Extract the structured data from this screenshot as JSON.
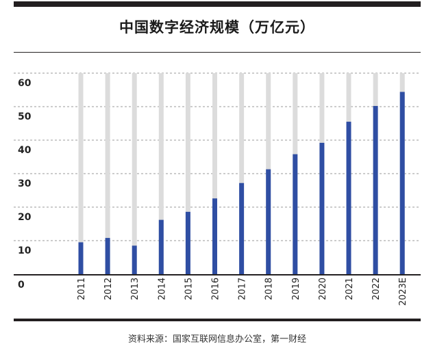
{
  "title": "中国数字经济规模（万亿元）",
  "source": "资料来源：国家互联网信息办公室，第一财经",
  "colors": {
    "bar": "#2f4ea3",
    "track": "#dcdcdc",
    "grid": "#9a9a9a",
    "axis": "#231f20"
  },
  "chart_data": {
    "type": "bar",
    "title": "中国数字经济规模（万亿元）",
    "xlabel": "",
    "ylabel": "",
    "categories": [
      "2011",
      "2012",
      "2013",
      "2014",
      "2015",
      "2016",
      "2017",
      "2018",
      "2019",
      "2020",
      "2021",
      "2022",
      "2023E"
    ],
    "values": [
      9.5,
      10.8,
      8.5,
      16.2,
      18.6,
      22.6,
      27.2,
      31.3,
      35.8,
      39.2,
      45.5,
      50.2,
      54.4
    ],
    "ylim": [
      0,
      60
    ],
    "yticks": [
      0,
      10,
      20,
      30,
      40,
      50,
      60
    ],
    "ytick_labels": [
      "0",
      "10",
      "20",
      "30",
      "40",
      "50",
      "60"
    ],
    "grid": true,
    "legend": "none"
  }
}
